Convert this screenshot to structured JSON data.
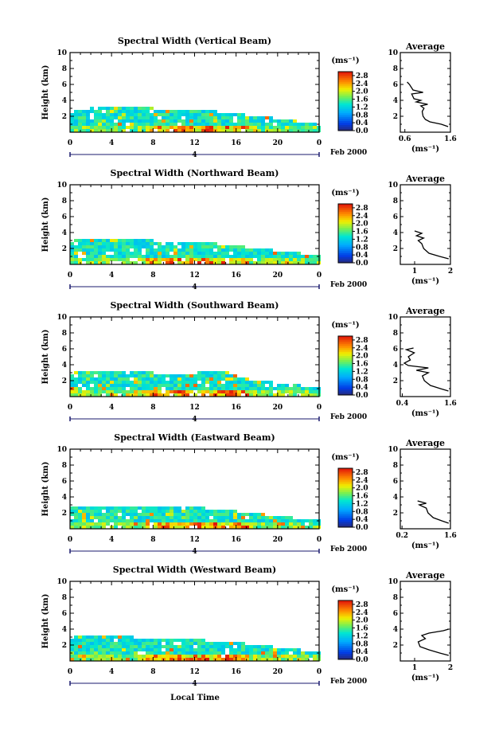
{
  "figure": {
    "xlabel": "Local Time",
    "colors": {
      "background": "#ffffff",
      "axis": "#000000",
      "date_marker": "#1a1a6e"
    }
  },
  "chart_data": [
    {
      "type": "heatmap",
      "title": "Spectral Width (Vertical Beam)",
      "ylabel": "Height (km)",
      "xlim": [
        0,
        24
      ],
      "ylim": [
        0,
        10
      ],
      "x_ticks": [
        "0",
        "4",
        "8",
        "12",
        "16",
        "20",
        "0"
      ],
      "y_ticks": [
        "2",
        "4",
        "6",
        "8",
        "10"
      ],
      "date_day": "4",
      "date_label": "Feb 2000",
      "colorbar": {
        "unit": "(ms⁻¹)",
        "ticks": [
          "0.0",
          "0.4",
          "0.8",
          "1.2",
          "1.6",
          "2.0",
          "2.4",
          "2.8"
        ],
        "range": [
          0,
          3.0
        ]
      },
      "echo_top_km": [
        [
          0,
          2.9
        ],
        [
          3,
          3.1
        ],
        [
          6,
          3.1
        ],
        [
          8,
          3.0
        ],
        [
          10,
          2.9
        ],
        [
          12,
          2.8
        ],
        [
          14,
          2.6
        ],
        [
          16,
          2.3
        ],
        [
          18,
          2.0
        ],
        [
          20,
          1.7
        ],
        [
          22,
          1.3
        ],
        [
          24,
          1.1
        ]
      ],
      "average": {
        "title": "Average",
        "xlabel": "(ms⁻¹)",
        "xlim": [
          0.5,
          1.6
        ],
        "x_ticks": [
          "0.6",
          "1.6"
        ],
        "y_ticks": [
          "2",
          "4",
          "6",
          "8",
          "10"
        ],
        "profile": [
          [
            1.55,
            0.7
          ],
          [
            1.4,
            1.0
          ],
          [
            1.15,
            1.3
          ],
          [
            1.05,
            1.6
          ],
          [
            1.0,
            2.0
          ],
          [
            0.98,
            2.6
          ],
          [
            1.02,
            3.0
          ],
          [
            0.95,
            3.3
          ],
          [
            1.1,
            3.5
          ],
          [
            0.85,
            3.8
          ],
          [
            0.95,
            4.0
          ],
          [
            0.8,
            4.2
          ],
          [
            0.75,
            4.8
          ],
          [
            1.0,
            5.0
          ],
          [
            0.78,
            5.3
          ],
          [
            0.7,
            6.0
          ],
          [
            0.65,
            6.3
          ]
        ]
      }
    },
    {
      "type": "heatmap",
      "title": "Spectral Width (Northward Beam)",
      "ylabel": "Height (km)",
      "xlim": [
        0,
        24
      ],
      "ylim": [
        0,
        10
      ],
      "x_ticks": [
        "0",
        "4",
        "8",
        "12",
        "16",
        "20",
        "0"
      ],
      "y_ticks": [
        "2",
        "4",
        "6",
        "8",
        "10"
      ],
      "date_day": "4",
      "date_label": "Feb 2000",
      "colorbar": {
        "unit": "(ms⁻¹)",
        "ticks": [
          "0.0",
          "0.4",
          "0.8",
          "1.2",
          "1.6",
          "2.0",
          "2.4",
          "2.8"
        ],
        "range": [
          0,
          3.0
        ]
      },
      "echo_top_km": [
        [
          0,
          3.0
        ],
        [
          3,
          3.1
        ],
        [
          6,
          3.1
        ],
        [
          8,
          3.0
        ],
        [
          10,
          2.9
        ],
        [
          12,
          2.8
        ],
        [
          14,
          2.6
        ],
        [
          16,
          2.3
        ],
        [
          18,
          2.0
        ],
        [
          20,
          1.7
        ],
        [
          22,
          1.4
        ],
        [
          24,
          1.1
        ]
      ],
      "average": {
        "title": "Average",
        "xlabel": "(ms⁻¹)",
        "xlim": [
          0.6,
          2.0
        ],
        "x_ticks": [
          "1",
          "2"
        ],
        "y_ticks": [
          "2",
          "4",
          "6",
          "8",
          "10"
        ],
        "profile": [
          [
            1.95,
            0.7
          ],
          [
            1.7,
            1.0
          ],
          [
            1.4,
            1.4
          ],
          [
            1.25,
            2.0
          ],
          [
            1.2,
            2.6
          ],
          [
            1.1,
            3.0
          ],
          [
            1.25,
            3.3
          ],
          [
            1.05,
            3.6
          ],
          [
            1.2,
            3.9
          ],
          [
            1.0,
            4.2
          ]
        ]
      }
    },
    {
      "type": "heatmap",
      "title": "Spectral Width (Southward Beam)",
      "ylabel": "Height (km)",
      "xlim": [
        0,
        24
      ],
      "ylim": [
        0,
        10
      ],
      "x_ticks": [
        "0",
        "4",
        "8",
        "12",
        "16",
        "20",
        "0"
      ],
      "y_ticks": [
        "2",
        "4",
        "6",
        "8",
        "10"
      ],
      "date_day": "4",
      "date_label": "Feb 2000",
      "colorbar": {
        "unit": "(ms⁻¹)",
        "ticks": [
          "0.0",
          "0.4",
          "0.8",
          "1.2",
          "1.6",
          "2.0",
          "2.4",
          "2.8"
        ],
        "range": [
          0,
          3.0
        ]
      },
      "echo_top_km": [
        [
          0,
          3.0
        ],
        [
          3,
          3.1
        ],
        [
          6,
          3.1
        ],
        [
          8,
          3.0
        ],
        [
          10,
          2.9
        ],
        [
          12,
          3.0
        ],
        [
          14,
          3.2
        ],
        [
          15,
          3.3
        ],
        [
          16,
          2.4
        ],
        [
          18,
          2.0
        ],
        [
          20,
          1.7
        ],
        [
          22,
          1.4
        ],
        [
          24,
          1.1
        ]
      ],
      "average": {
        "title": "Average",
        "xlabel": "(ms⁻¹)",
        "xlim": [
          0.35,
          1.6
        ],
        "x_ticks": [
          "0.4",
          "1.6"
        ],
        "y_ticks": [
          "2",
          "4",
          "6",
          "8",
          "10"
        ],
        "profile": [
          [
            1.55,
            0.7
          ],
          [
            1.35,
            1.0
          ],
          [
            1.1,
            1.4
          ],
          [
            0.95,
            2.0
          ],
          [
            0.9,
            2.6
          ],
          [
            1.05,
            3.0
          ],
          [
            0.75,
            3.3
          ],
          [
            1.05,
            3.6
          ],
          [
            0.55,
            3.9
          ],
          [
            0.45,
            4.2
          ],
          [
            0.6,
            4.6
          ],
          [
            0.55,
            5.0
          ],
          [
            0.7,
            5.5
          ],
          [
            0.5,
            5.9
          ],
          [
            0.68,
            6.1
          ]
        ]
      }
    },
    {
      "type": "heatmap",
      "title": "Spectral Width (Eastward Beam)",
      "ylabel": "Height (km)",
      "xlim": [
        0,
        24
      ],
      "ylim": [
        0,
        10
      ],
      "x_ticks": [
        "0",
        "4",
        "8",
        "12",
        "16",
        "20",
        "0"
      ],
      "y_ticks": [
        "2",
        "4",
        "6",
        "8",
        "10"
      ],
      "date_day": "4",
      "date_label": "Feb 2000",
      "colorbar": {
        "unit": "(ms⁻¹)",
        "ticks": [
          "0.0",
          "0.4",
          "0.8",
          "1.2",
          "1.6",
          "2.0",
          "2.4",
          "2.8"
        ],
        "range": [
          0,
          3.0
        ]
      },
      "echo_top_km": [
        [
          0,
          2.9
        ],
        [
          3,
          3.0
        ],
        [
          6,
          3.0
        ],
        [
          8,
          2.9
        ],
        [
          10,
          2.8
        ],
        [
          12,
          2.7
        ],
        [
          14,
          2.5
        ],
        [
          16,
          2.2
        ],
        [
          18,
          1.9
        ],
        [
          20,
          1.6
        ],
        [
          22,
          1.3
        ],
        [
          24,
          1.1
        ]
      ],
      "average": {
        "title": "Average",
        "xlabel": "(ms⁻¹)",
        "xlim": [
          0.15,
          1.6
        ],
        "x_ticks": [
          "0.2",
          "1.6"
        ],
        "y_ticks": [
          "2",
          "4",
          "6",
          "8",
          "10"
        ],
        "profile": [
          [
            1.55,
            0.7
          ],
          [
            1.35,
            1.0
          ],
          [
            1.1,
            1.4
          ],
          [
            0.95,
            2.0
          ],
          [
            0.9,
            2.6
          ],
          [
            0.7,
            3.0
          ],
          [
            0.9,
            3.2
          ],
          [
            0.65,
            3.5
          ]
        ]
      }
    },
    {
      "type": "heatmap",
      "title": "Spectral Width (Westward Beam)",
      "ylabel": "Height (km)",
      "xlim": [
        0,
        24
      ],
      "ylim": [
        0,
        10
      ],
      "x_ticks": [
        "0",
        "4",
        "8",
        "12",
        "16",
        "20",
        "0"
      ],
      "y_ticks": [
        "2",
        "4",
        "6",
        "8",
        "10"
      ],
      "date_day": "4",
      "date_label": "Feb 2000",
      "colorbar": {
        "unit": "(ms⁻¹)",
        "ticks": [
          "0.0",
          "0.4",
          "0.8",
          "1.2",
          "1.6",
          "2.0",
          "2.4",
          "2.8"
        ],
        "range": [
          0,
          3.0
        ]
      },
      "echo_top_km": [
        [
          0,
          3.0
        ],
        [
          3,
          3.1
        ],
        [
          6,
          3.0
        ],
        [
          8,
          2.9
        ],
        [
          10,
          2.8
        ],
        [
          12,
          2.7
        ],
        [
          14,
          2.5
        ],
        [
          16,
          2.3
        ],
        [
          18,
          2.0
        ],
        [
          20,
          1.7
        ],
        [
          22,
          1.4
        ],
        [
          24,
          1.1
        ]
      ],
      "average": {
        "title": "Average",
        "xlabel": "(ms⁻¹)",
        "xlim": [
          0.6,
          2.0
        ],
        "x_ticks": [
          "1",
          "2"
        ],
        "y_ticks": [
          "2",
          "4",
          "6",
          "8",
          "10"
        ],
        "profile": [
          [
            1.95,
            0.7
          ],
          [
            1.7,
            1.0
          ],
          [
            1.4,
            1.4
          ],
          [
            1.15,
            1.8
          ],
          [
            1.1,
            2.4
          ],
          [
            1.3,
            2.8
          ],
          [
            1.2,
            3.2
          ],
          [
            1.4,
            3.5
          ],
          [
            1.8,
            3.8
          ],
          [
            1.95,
            4.0
          ]
        ]
      }
    }
  ]
}
